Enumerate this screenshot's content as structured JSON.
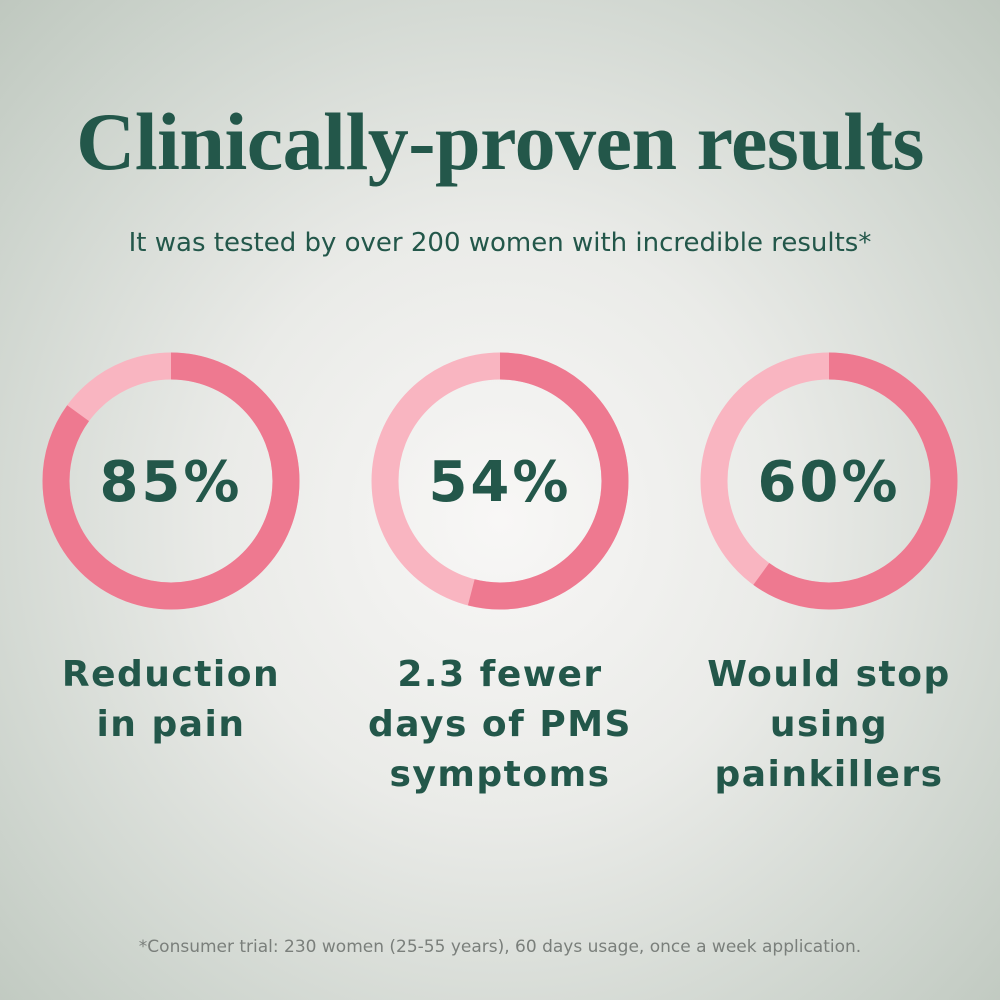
{
  "title": "Clinically-proven results",
  "subtitle": "It was tested by over 200 women with incredible results*",
  "colors": {
    "text": "#23574a",
    "filled": "#ee7990",
    "remaining": "#f9b5c1"
  },
  "chart_data": [
    {
      "type": "pie",
      "style": "donut",
      "value": 85,
      "label_value": "85%",
      "caption": "Reduction in pain"
    },
    {
      "type": "pie",
      "style": "donut",
      "value": 54,
      "label_value": "54%",
      "caption": "2.3 fewer days of PMS symptoms"
    },
    {
      "type": "pie",
      "style": "donut",
      "value": 60,
      "label_value": "60%",
      "caption": "Would stop using painkillers"
    }
  ],
  "footnote": "*Consumer trial: 230 women (25-55 years), 60 days usage, once a week application."
}
